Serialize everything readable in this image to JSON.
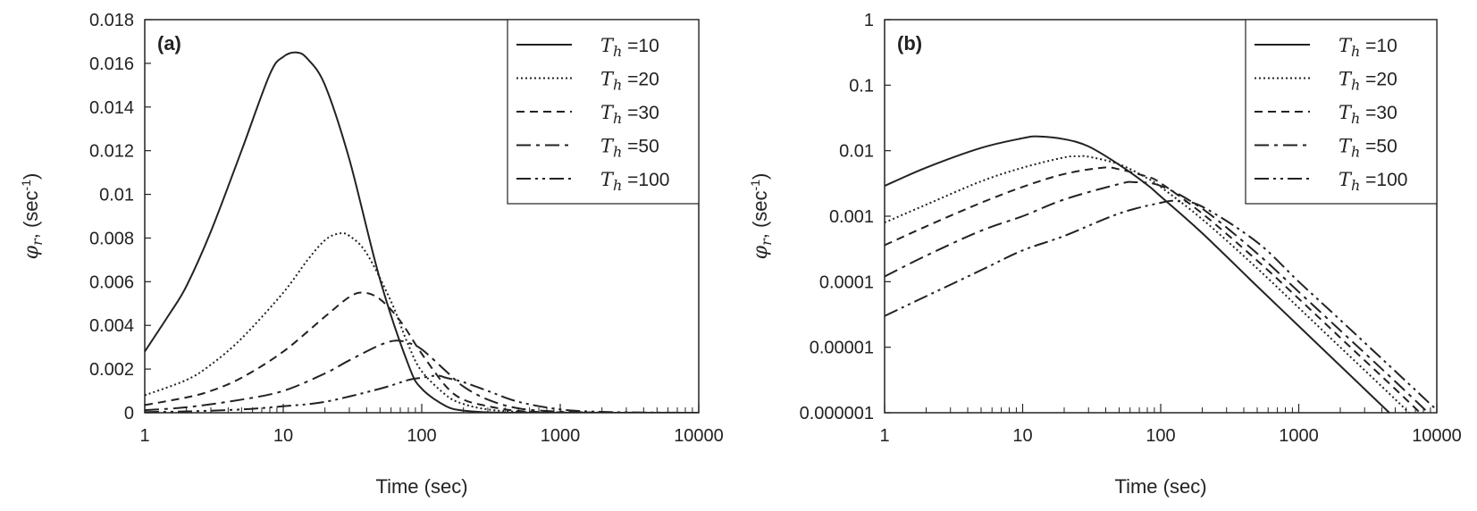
{
  "chart_data": [
    {
      "panel_label": "(a)",
      "type": "line",
      "xscale": "log",
      "yscale": "linear",
      "xlim": [
        1,
        10000
      ],
      "ylim": [
        0,
        0.018
      ],
      "xlabel": "Time (sec)",
      "ylabel": "φr, (sec-1)",
      "ylabel_parts": {
        "symbol": "φ",
        "subscript": "r",
        "mid": ", (sec",
        "superscript": "-1",
        "end": ")"
      },
      "x_ticks": [
        "1",
        "10",
        "100",
        "1000",
        "10000"
      ],
      "y_ticks": [
        "0",
        "0.002",
        "0.004",
        "0.006",
        "0.008",
        "0.01",
        "0.012",
        "0.014",
        "0.016",
        "0.018"
      ],
      "legend_position": "top-right",
      "series": [
        {
          "name": "Th =10",
          "label_symbol": "T",
          "label_subscript": "h",
          "label_value": " =10",
          "style": "solid",
          "x": [
            1,
            1.5,
            2,
            3,
            5,
            8,
            10,
            12.5,
            15,
            20,
            30,
            50,
            80,
            100,
            150,
            200,
            300,
            500,
            1000,
            2000,
            5000,
            10000
          ],
          "y": [
            0.0028,
            0.0045,
            0.0058,
            0.0083,
            0.012,
            0.0155,
            0.0163,
            0.0165,
            0.0162,
            0.015,
            0.0116,
            0.0061,
            0.0022,
            0.0011,
            0.0003,
            0.0001,
            2e-05,
            5e-06,
            8e-07,
            1e-07,
            5e-09,
            1.5e-09
          ]
        },
        {
          "name": "Th =20",
          "label_symbol": "T",
          "label_subscript": "h",
          "label_value": " =20",
          "style": "dotted",
          "x": [
            1,
            2,
            3,
            5,
            10,
            15,
            20,
            25,
            30,
            40,
            60,
            80,
            100,
            150,
            200,
            300,
            500,
            1000,
            2000,
            5000,
            10000
          ],
          "y": [
            0.0008,
            0.0015,
            0.0022,
            0.0034,
            0.0055,
            0.007,
            0.0079,
            0.0082,
            0.0081,
            0.0073,
            0.0051,
            0.0031,
            0.0019,
            0.0008,
            0.0004,
            0.00015,
            4e-05,
            8e-06,
            1.5e-06,
            1.5e-07,
            3e-08
          ]
        },
        {
          "name": "Th =30",
          "label_symbol": "T",
          "label_subscript": "h",
          "label_value": " =30",
          "style": "dashed",
          "x": [
            1,
            2,
            3,
            5,
            10,
            20,
            30,
            38,
            50,
            70,
            100,
            150,
            200,
            300,
            500,
            1000,
            2000,
            5000,
            10000
          ],
          "y": [
            0.00035,
            0.0007,
            0.001,
            0.0016,
            0.0028,
            0.0044,
            0.0053,
            0.0055,
            0.0052,
            0.0042,
            0.0027,
            0.0012,
            0.0006,
            0.0003,
            8e-05,
            2e-05,
            4e-06,
            6e-07,
            1e-07
          ]
        },
        {
          "name": "Th =50",
          "label_symbol": "T",
          "label_subscript": "h",
          "label_value": " =50",
          "style": "dashdot",
          "x": [
            1,
            2,
            5,
            10,
            20,
            30,
            50,
            65,
            80,
            100,
            150,
            200,
            300,
            500,
            1000,
            2000,
            5000,
            10000
          ],
          "y": [
            0.00012,
            0.00025,
            0.0006,
            0.001,
            0.0018,
            0.0024,
            0.0031,
            0.0033,
            0.0032,
            0.0029,
            0.0019,
            0.0012,
            0.0006,
            0.0002,
            5e-05,
            1.2e-05,
            2e-06,
            5e-07
          ]
        },
        {
          "name": "Th =100",
          "label_symbol": "T",
          "label_subscript": "h",
          "label_value": " =100",
          "style": "dashdotdot",
          "x": [
            1,
            2,
            5,
            10,
            20,
            50,
            80,
            100,
            130,
            150,
            200,
            300,
            500,
            1000,
            2000,
            5000,
            10000
          ],
          "y": [
            3e-05,
            6e-05,
            0.00015,
            0.0003,
            0.0005,
            0.0011,
            0.0015,
            0.0016,
            0.0017,
            0.0016,
            0.0014,
            0.001,
            0.0005,
            0.00015,
            4e-05,
            7e-06,
            1.5e-06
          ]
        }
      ]
    },
    {
      "panel_label": "(b)",
      "type": "line",
      "xscale": "log",
      "yscale": "log",
      "xlim": [
        1,
        10000
      ],
      "ylim": [
        1e-06,
        1
      ],
      "xlabel": "Time (sec)",
      "ylabel": "φr, (sec-1)",
      "ylabel_parts": {
        "symbol": "φ",
        "subscript": "r",
        "mid": ", (sec",
        "superscript": "-1",
        "end": ")"
      },
      "x_ticks": [
        "1",
        "10",
        "100",
        "1000",
        "10000"
      ],
      "y_ticks": [
        "0.000001",
        "0.00001",
        "0.0001",
        "0.001",
        "0.01",
        "0.1",
        "1"
      ],
      "legend_position": "top-right",
      "series": [
        {
          "name": "Th =10",
          "label_symbol": "T",
          "label_subscript": "h",
          "label_value": " =10",
          "style": "solid",
          "x": [
            1,
            2,
            5,
            10,
            13,
            20,
            30,
            50,
            80,
            100,
            200,
            500,
            1000,
            2000,
            5000
          ],
          "y": [
            0.0029,
            0.0055,
            0.011,
            0.0155,
            0.0165,
            0.015,
            0.0116,
            0.0061,
            0.003,
            0.002,
            0.00055,
            8.5e-05,
            2.1e-05,
            5.2e-06,
            8.2e-07
          ]
        },
        {
          "name": "Th =20",
          "label_symbol": "T",
          "label_subscript": "h",
          "label_value": " =20",
          "style": "dotted",
          "x": [
            1,
            2,
            5,
            10,
            20,
            25,
            30,
            50,
            80,
            100,
            200,
            500,
            1000,
            2000,
            5000,
            8000
          ],
          "y": [
            0.0008,
            0.0015,
            0.0034,
            0.0055,
            0.0079,
            0.0082,
            0.0081,
            0.0062,
            0.0038,
            0.0028,
            0.0009,
            0.00016,
            4e-05,
            1e-05,
            1.6e-06,
            6e-07
          ]
        },
        {
          "name": "Th =30",
          "label_symbol": "T",
          "label_subscript": "h",
          "label_value": " =30",
          "style": "dashed",
          "x": [
            1,
            2,
            5,
            10,
            20,
            38,
            50,
            80,
            100,
            200,
            500,
            1000,
            2000,
            5000,
            9000
          ],
          "y": [
            0.00036,
            0.0007,
            0.0016,
            0.0028,
            0.0044,
            0.0055,
            0.0052,
            0.004,
            0.0032,
            0.0011,
            0.00021,
            5.5e-05,
            1.4e-05,
            2.3e-06,
            7e-07
          ]
        },
        {
          "name": "Th =50",
          "label_symbol": "T",
          "label_subscript": "h",
          "label_value": " =50",
          "style": "dashdot",
          "x": [
            1,
            2,
            5,
            10,
            20,
            50,
            65,
            100,
            200,
            500,
            1000,
            2000,
            5000,
            10000
          ],
          "y": [
            0.00012,
            0.00025,
            0.0006,
            0.001,
            0.0018,
            0.0031,
            0.0033,
            0.0029,
            0.0013,
            0.00027,
            7e-05,
            1.8e-05,
            3e-06,
            7.5e-07
          ]
        },
        {
          "name": "Th =100",
          "label_symbol": "T",
          "label_subscript": "h",
          "label_value": " =100",
          "style": "dashdotdot",
          "x": [
            1,
            2,
            5,
            10,
            20,
            50,
            100,
            130,
            200,
            500,
            1000,
            2000,
            5000,
            10000
          ],
          "y": [
            3e-05,
            6e-05,
            0.00015,
            0.0003,
            0.0005,
            0.0011,
            0.0016,
            0.0017,
            0.0014,
            0.0004,
            0.0001,
            2.6e-05,
            4.3e-06,
            1.1e-06
          ]
        }
      ]
    }
  ]
}
